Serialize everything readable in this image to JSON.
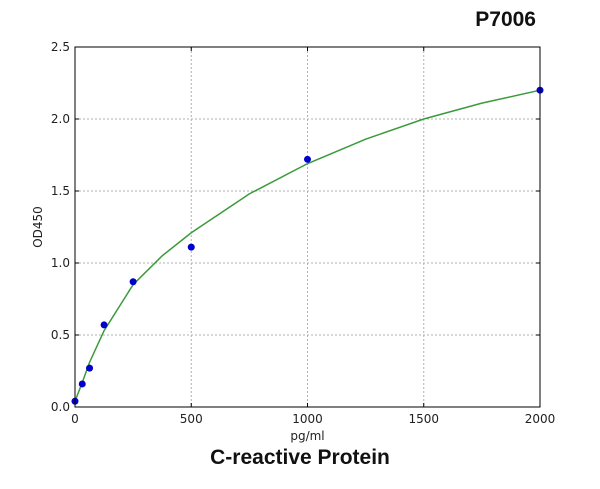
{
  "header": {
    "code": "P7006"
  },
  "chart_data": {
    "type": "scatter",
    "title": "C-reactive Protein",
    "xlabel": "pg/ml",
    "ylabel": "OD450",
    "xlim": [
      0,
      2000
    ],
    "ylim": [
      0,
      2.5
    ],
    "xticks": [
      "0",
      "500",
      "1000",
      "1500",
      "2000"
    ],
    "yticks": [
      "0.0",
      "0.5",
      "1.0",
      "1.5",
      "2.0",
      "2.5"
    ],
    "grid": true,
    "points": {
      "x": [
        0,
        31.25,
        62.5,
        125,
        250,
        500,
        1000,
        2000
      ],
      "y": [
        0.04,
        0.16,
        0.27,
        0.57,
        0.87,
        1.11,
        1.72,
        2.2
      ]
    },
    "fit_curve": {
      "x": [
        0,
        31.25,
        62.5,
        125,
        250,
        375,
        500,
        750,
        1000,
        1250,
        1500,
        1750,
        2000
      ],
      "y": [
        0.04,
        0.17,
        0.31,
        0.53,
        0.85,
        1.05,
        1.21,
        1.48,
        1.69,
        1.86,
        2.0,
        2.11,
        2.2
      ]
    },
    "colors": {
      "points": "#0000cc",
      "curve": "#3a9a3a",
      "grid": "#b0b0b0"
    }
  }
}
